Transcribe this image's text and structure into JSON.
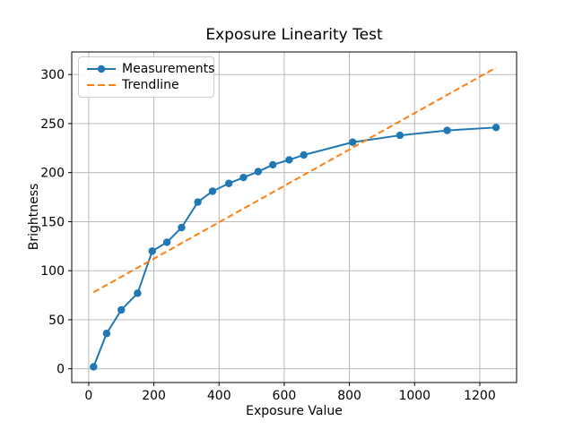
{
  "figure": {
    "background": "#ffffff",
    "grid_color": "#b0b0b0",
    "spine_color": "#000000",
    "legend_border_color": "#cccccc"
  },
  "chart_data": {
    "type": "line",
    "title": "Exposure Linearity Test",
    "xlabel": "Exposure Value",
    "ylabel": "Brightness",
    "xlim": [
      -52,
      1313
    ],
    "ylim": [
      -14,
      323
    ],
    "x_ticks": [
      0,
      200,
      400,
      600,
      800,
      1000,
      1200
    ],
    "y_ticks": [
      0,
      50,
      100,
      150,
      200,
      250,
      300
    ],
    "grid": true,
    "legend_position": "upper left",
    "series": [
      {
        "name": "Measurements",
        "style": "solid",
        "marker": "circle",
        "color": "#1f77b4",
        "x": [
          15,
          55,
          100,
          150,
          195,
          240,
          285,
          335,
          380,
          430,
          475,
          520,
          565,
          615,
          660,
          810,
          955,
          1100,
          1250
        ],
        "y": [
          2,
          36,
          60,
          77,
          120,
          129,
          144,
          170,
          181,
          189,
          195,
          201,
          208,
          213,
          218,
          231,
          238,
          243,
          246
        ]
      },
      {
        "name": "Trendline",
        "style": "dashed",
        "marker": "none",
        "color": "#ff7f0e",
        "x": [
          15,
          1250
        ],
        "y": [
          78,
          307
        ]
      }
    ]
  }
}
